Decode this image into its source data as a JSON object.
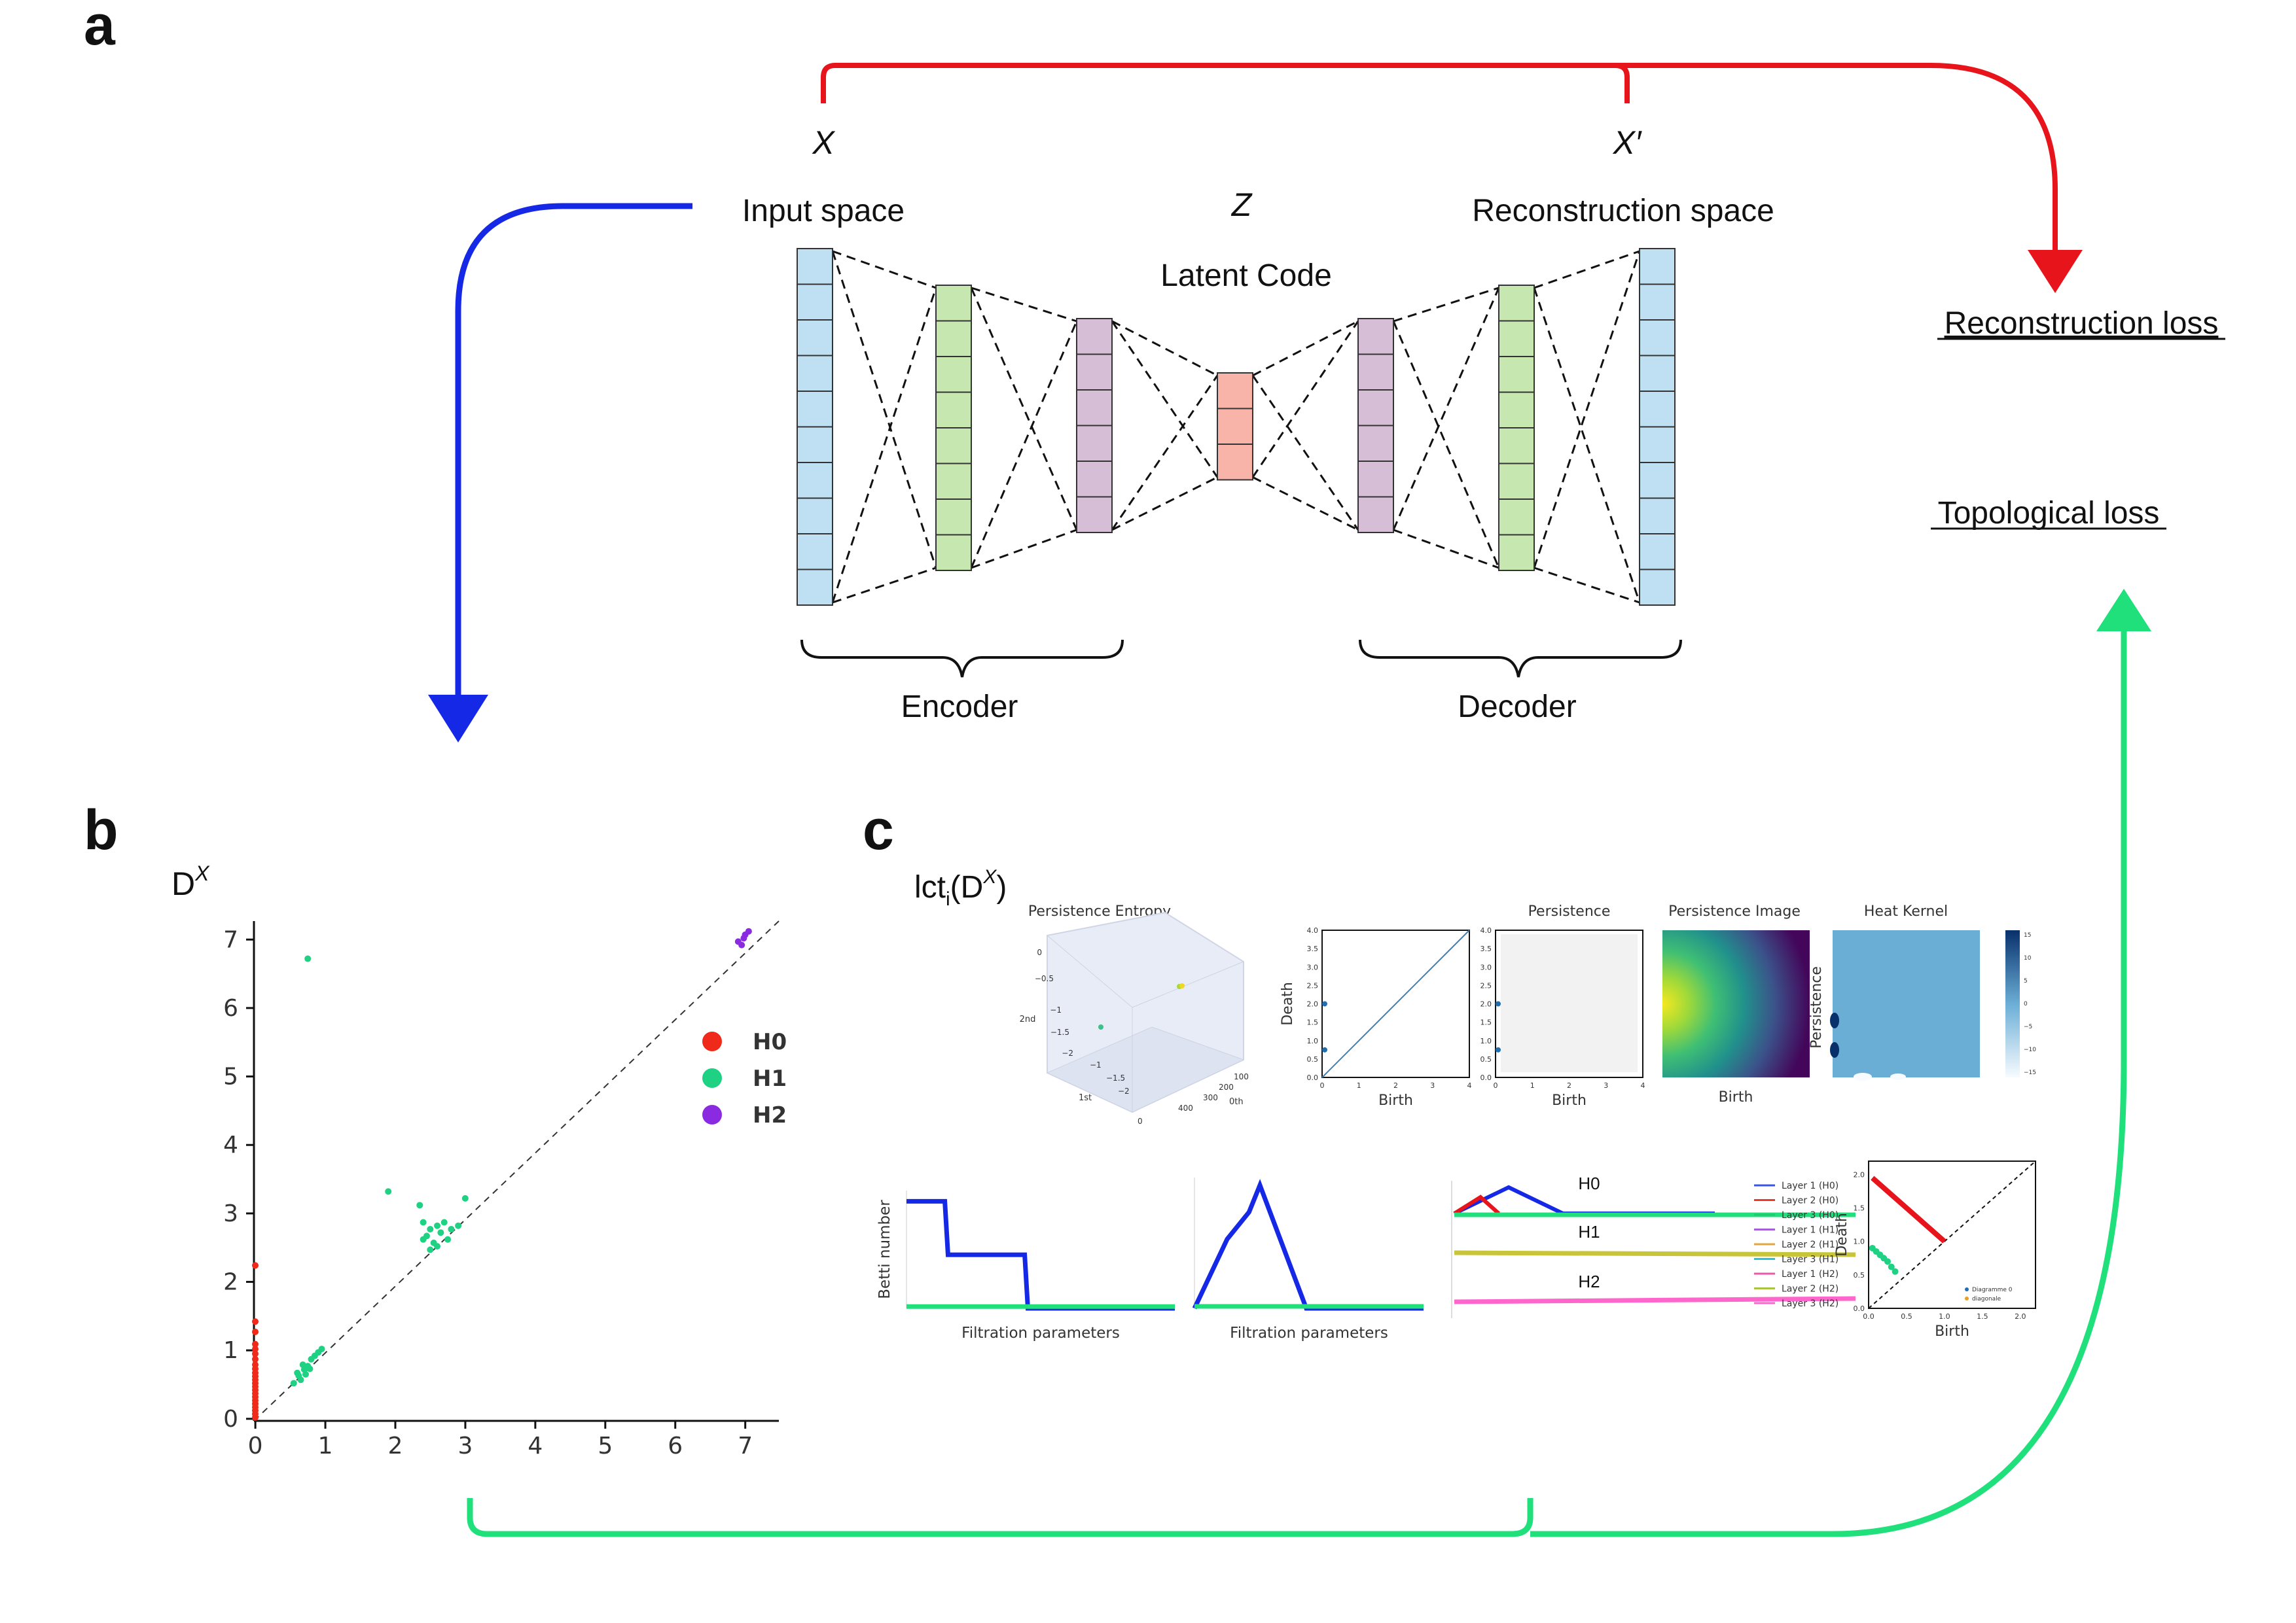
{
  "panels": {
    "a": "a",
    "b": "b",
    "c": "c"
  },
  "colors": {
    "red_arrow": "#e8141b",
    "blue_arrow": "#1428e6",
    "green_arrow": "#1fe07a",
    "layer_blue": "#bfe0f3",
    "layer_green": "#c6e7b0",
    "layer_purple": "#d6bfd6",
    "layer_red": "#f8b4a8",
    "h0": "#ef2a1a",
    "h1": "#1fd283",
    "h2": "#8a2be2"
  },
  "panel_a": {
    "x_label": "X",
    "x_prime_label": "X′",
    "z_label": "Z",
    "input_space": "Input space",
    "latent_code": "Latent Code",
    "reconstruction_space": "Reconstruction space",
    "encoder": "Encoder",
    "decoder": "Decoder",
    "reconstruction_loss": "Reconstruction loss",
    "topological_loss": "Topological loss"
  },
  "panel_b": {
    "title_main": "D",
    "title_sup": "X",
    "chart_data": {
      "type": "scatter",
      "xlim": [
        0,
        7.5
      ],
      "ylim": [
        0,
        7.3
      ],
      "x_ticks": [
        "0",
        "1",
        "2",
        "3",
        "4",
        "5",
        "6",
        "7"
      ],
      "y_ticks": [
        "0",
        "1",
        "2",
        "3",
        "4",
        "5",
        "6",
        "7"
      ],
      "diagonal": true,
      "legend_position": "right",
      "series": [
        {
          "name": "H0",
          "color": "#ef2a1a",
          "points": [
            [
              0,
              2.27
            ],
            [
              0,
              1.45
            ],
            [
              0,
              1.3
            ],
            [
              0,
              1.12
            ],
            [
              0,
              1.05
            ],
            [
              0,
              0.98
            ],
            [
              0,
              0.9
            ],
            [
              0,
              0.82
            ],
            [
              0,
              0.76
            ],
            [
              0,
              0.7
            ],
            [
              0,
              0.65
            ],
            [
              0,
              0.6
            ],
            [
              0,
              0.55
            ],
            [
              0,
              0.5
            ],
            [
              0,
              0.45
            ],
            [
              0,
              0.4
            ],
            [
              0,
              0.35
            ],
            [
              0,
              0.3
            ],
            [
              0,
              0.25
            ],
            [
              0,
              0.2
            ],
            [
              0,
              0.15
            ],
            [
              0,
              0.1
            ],
            [
              0,
              0.05
            ]
          ]
        },
        {
          "name": "H1",
          "color": "#1fd283",
          "points": [
            [
              0.75,
              6.75
            ],
            [
              1.9,
              3.35
            ],
            [
              2.35,
              3.15
            ],
            [
              3.0,
              3.25
            ],
            [
              2.4,
              2.9
            ],
            [
              2.5,
              2.8
            ],
            [
              2.6,
              2.85
            ],
            [
              2.45,
              2.7
            ],
            [
              2.55,
              2.6
            ],
            [
              2.65,
              2.75
            ],
            [
              2.7,
              2.9
            ],
            [
              2.8,
              2.8
            ],
            [
              2.5,
              2.5
            ],
            [
              2.6,
              2.55
            ],
            [
              2.75,
              2.65
            ],
            [
              2.9,
              2.85
            ],
            [
              2.4,
              2.65
            ],
            [
              0.6,
              0.7
            ],
            [
              0.65,
              0.6
            ],
            [
              0.7,
              0.75
            ],
            [
              0.75,
              0.8
            ],
            [
              0.8,
              0.9
            ],
            [
              0.85,
              0.95
            ],
            [
              0.9,
              1.0
            ],
            [
              0.55,
              0.55
            ],
            [
              0.62,
              0.66
            ],
            [
              0.72,
              0.68
            ],
            [
              0.68,
              0.82
            ],
            [
              0.78,
              0.76
            ],
            [
              0.95,
              1.05
            ]
          ]
        },
        {
          "name": "H2",
          "color": "#8a2be2",
          "points": [
            [
              6.9,
              7.0
            ],
            [
              6.95,
              6.95
            ],
            [
              7.0,
              7.1
            ],
            [
              7.05,
              7.15
            ],
            [
              6.98,
              7.05
            ]
          ]
        }
      ]
    }
  },
  "panel_c": {
    "title": "lct",
    "title_sub": "i",
    "title_paren": "(D",
    "title_sup": "X",
    "title_end": ")",
    "persistence_entropy": {
      "title": "Persistence Entropy",
      "axis_1st": "1st",
      "axis_2nd": "2nd",
      "axis_0th": "0th",
      "z_ticks": [
        "0",
        "−0.5",
        "−1",
        "−1.5",
        "−2"
      ],
      "x_ticks": [
        "0",
        "−0.5",
        "−1",
        "−1.5",
        "−2"
      ],
      "y_ticks": [
        "0",
        "100",
        "200",
        "300",
        "400"
      ]
    },
    "diagram_plot": {
      "ylabel": "Death",
      "xlabel": "Birth",
      "ticks": [
        "0.0",
        "0.5",
        "1.0",
        "1.5",
        "2.0",
        "2.5",
        "3.0",
        "3.5",
        "4.0"
      ],
      "x_ticks": [
        "0",
        "1",
        "2",
        "3",
        "4"
      ],
      "chart_data": {
        "type": "scatter",
        "points": [
          [
            0,
            2.0
          ],
          [
            0,
            0.75
          ]
        ],
        "xlim": [
          0,
          4
        ],
        "ylim": [
          0,
          4
        ]
      }
    },
    "persistence": {
      "title": "Persistence",
      "xlabel": "Birth",
      "ticks": [
        "0.0",
        "0.5",
        "1.0",
        "1.5",
        "2.0",
        "2.5",
        "3.0",
        "3.5",
        "4.0"
      ],
      "x_ticks": [
        "0",
        "1",
        "2",
        "3",
        "4"
      ],
      "chart_data": {
        "type": "scatter",
        "points": [
          [
            0,
            2.0
          ],
          [
            0,
            0.75
          ]
        ],
        "xlim": [
          0,
          4
        ],
        "ylim": [
          0,
          4
        ]
      }
    },
    "persistence_image": {
      "title": "Persistence Image",
      "xlabel": "Birth"
    },
    "heat_kernel": {
      "title": "Heat Kernel",
      "ylabel": "Persistence",
      "colorbar_ticks": [
        "15",
        "10",
        "5",
        "0",
        "−5",
        "−10",
        "−15"
      ]
    },
    "betti": {
      "ylabel": "Betti number",
      "xlabel": "Filtration parameters",
      "chart_data": {
        "type": "line",
        "xlim": [
          0,
          4.2
        ],
        "series": [
          {
            "color": "#1428e6",
            "x": [
              0,
              0.6,
              0.65,
              1.85,
              1.9,
              4.2
            ],
            "y": [
              3,
              3,
              1.5,
              1.5,
              0,
              0
            ]
          },
          {
            "color": "#1fe07a",
            "x": [
              0,
              4.2
            ],
            "y": [
              0.05,
              0.05
            ]
          }
        ]
      }
    },
    "landscape": {
      "xlabel": "Filtration parameters",
      "chart_data": {
        "type": "line",
        "xlim": [
          0,
          4.2
        ],
        "series": [
          {
            "color": "#1428e6",
            "x": [
              0,
              0.6,
              1.0,
              1.2,
              2.05,
              4.2
            ],
            "y": [
              0,
              1.8,
              2.5,
              3.2,
              0,
              0
            ]
          },
          {
            "color": "#1fe07a",
            "x": [
              0,
              4.2
            ],
            "y": [
              0.05,
              0.05
            ]
          }
        ]
      }
    },
    "silhouette": {
      "h0": "H0",
      "h1": "H1",
      "h2": "H2",
      "legend": [
        "Layer 1 (H0)",
        "Layer 2 (H0)",
        "Layer 3 (H0)",
        "Layer 1 (H1)",
        "Layer 2 (H1)",
        "Layer 3 (H1)",
        "Layer 1 (H2)",
        "Layer 2 (H2)",
        "Layer 3 (H2)"
      ],
      "legend_colors": [
        "#3b55e6",
        "#e83a2b",
        "#20c870",
        "#a35fd8",
        "#e0a640",
        "#24c6d6",
        "#e85aa8",
        "#a8c440",
        "#ff66cc"
      ]
    },
    "diagram_final": {
      "ylabel": "Death",
      "xlabel": "Birth",
      "ticks": [
        "0.0",
        "0.5",
        "1.0",
        "1.5",
        "2.0"
      ],
      "x_ticks": [
        "0.0",
        "0.5",
        "1.0",
        "1.5",
        "2.0"
      ],
      "legend": [
        "Diagramme 0",
        "diagonale"
      ],
      "chart_data": {
        "type": "scatter",
        "xlim": [
          0,
          2.2
        ],
        "ylim": [
          0,
          2.2
        ],
        "series": [
          {
            "name": "Diagramme 0",
            "color": "#e8141b",
            "line": [
              [
                0.05,
                1.95
              ],
              [
                1.0,
                1.0
              ]
            ]
          },
          {
            "name": "diagonale",
            "color": "#1fd283",
            "points": [
              [
                0.05,
                0.9
              ],
              [
                0.1,
                0.85
              ],
              [
                0.15,
                0.8
              ],
              [
                0.2,
                0.75
              ],
              [
                0.25,
                0.7
              ],
              [
                0.3,
                0.62
              ],
              [
                0.35,
                0.55
              ]
            ]
          }
        ]
      }
    }
  }
}
